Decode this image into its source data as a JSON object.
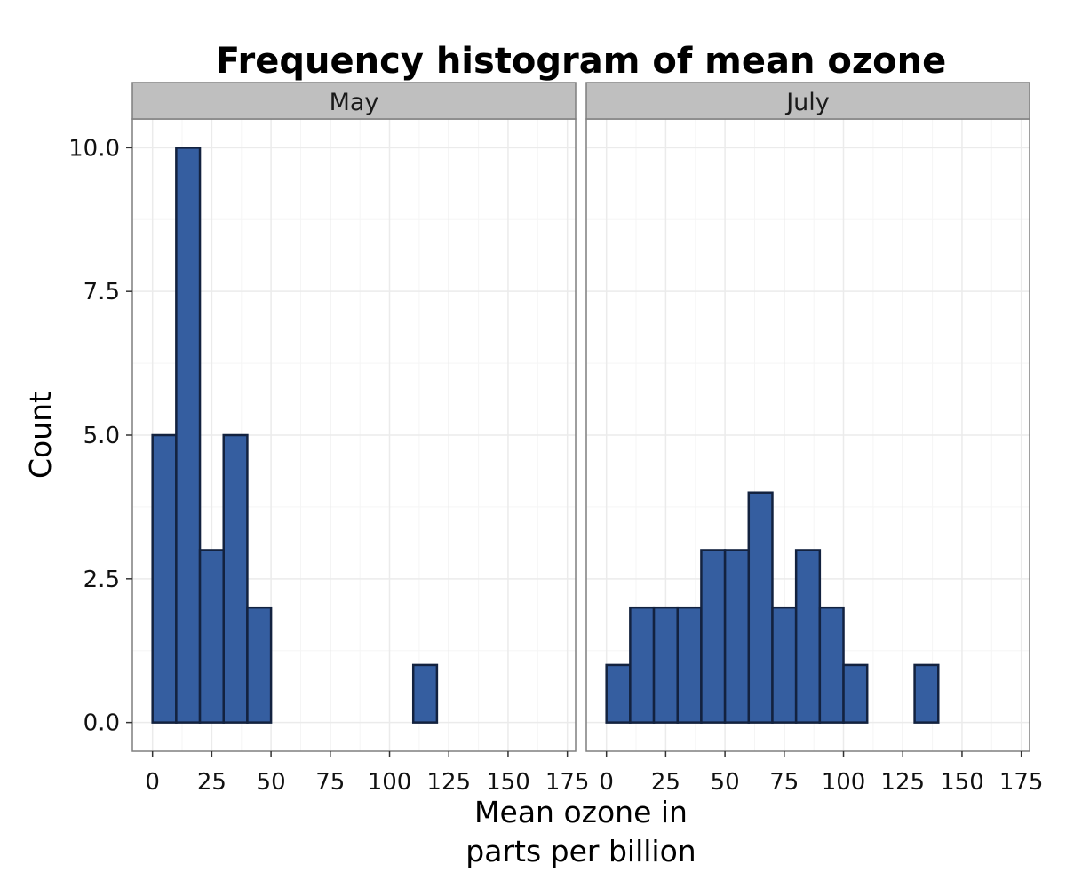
{
  "chart_data": {
    "type": "bar",
    "title": "Frequency histogram of mean ozone",
    "xlabel_lines": [
      "Mean ozone in",
      "parts per billion"
    ],
    "ylabel": "Count",
    "bin_width": 10,
    "xlim": [
      -8.5,
      178.5
    ],
    "ylim": [
      -0.5,
      10.5
    ],
    "xticks": [
      0,
      25,
      50,
      75,
      100,
      125,
      150,
      175
    ],
    "yticks": [
      0,
      2.5,
      5,
      7.5,
      10
    ],
    "ytick_labels": [
      "0.0",
      "2.5",
      "5.0",
      "7.5",
      "10.0"
    ],
    "grid": true,
    "colors": {
      "bar_fill": "#355ea0",
      "bar_edge": "#13223f",
      "strip_bg": "#bfbfbf",
      "grid": "#ebebeb",
      "panel_border": "#7f7f7f"
    },
    "facets": [
      {
        "label": "May",
        "bins": [
          0,
          10,
          20,
          30,
          40,
          50,
          60,
          70,
          80,
          90,
          100,
          110,
          120,
          130,
          140,
          150,
          160
        ],
        "counts": [
          5,
          10,
          3,
          5,
          2,
          0,
          0,
          0,
          0,
          0,
          0,
          1,
          0,
          0,
          0,
          0,
          0
        ]
      },
      {
        "label": "July",
        "bins": [
          0,
          10,
          20,
          30,
          40,
          50,
          60,
          70,
          80,
          90,
          100,
          110,
          120,
          130,
          140,
          150,
          160
        ],
        "counts": [
          1,
          2,
          2,
          2,
          3,
          3,
          4,
          2,
          3,
          2,
          1,
          0,
          0,
          1,
          0,
          0,
          0
        ]
      }
    ]
  }
}
